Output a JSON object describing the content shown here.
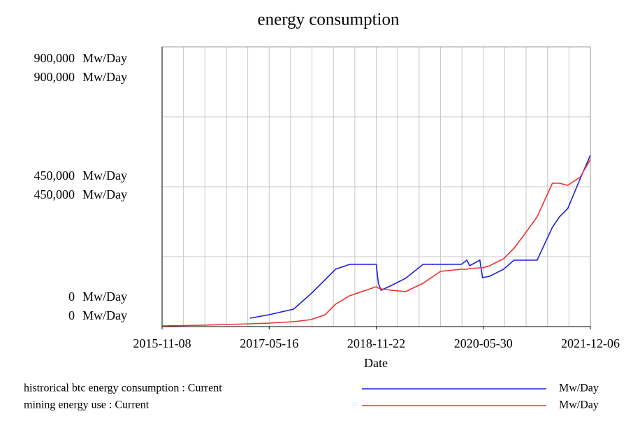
{
  "chart_data": {
    "type": "line",
    "title": "energy consumption",
    "x_label": "Date",
    "y_unit": "Mw/Day",
    "x": [
      "2015-11-08",
      "2016-06-05",
      "2017-02-06",
      "2017-05-16",
      "2017-09-20",
      "2017-12-19",
      "2018-03-02",
      "2018-04-25",
      "2018-07-07",
      "2018-11-22",
      "2018-12-03",
      "2018-12-17",
      "2019-02-10",
      "2019-04-23",
      "2019-07-23",
      "2019-10-21",
      "2020-02-06",
      "2020-03-06",
      "2020-03-20",
      "2020-05-12",
      "2020-05-26",
      "2020-07-02",
      "2020-09-12",
      "2020-11-05",
      "2020-12-30",
      "2021-03-05",
      "2021-05-23",
      "2021-06-29",
      "2021-08-11",
      "2021-10-15",
      "2021-12-06"
    ],
    "series": [
      {
        "name": "histrorical btc energy consumption : Current",
        "color": "#1f1fe0",
        "values": [
          null,
          null,
          27000,
          38250,
          56250,
          105750,
          150750,
          184500,
          200250,
          200250,
          139500,
          117000,
          132750,
          155250,
          200250,
          200250,
          200250,
          213750,
          195750,
          213750,
          157500,
          162000,
          184500,
          213750,
          213750,
          213750,
          319500,
          353250,
          380250,
          477000,
          551250
        ]
      },
      {
        "name": "mining energy use : Current",
        "color": "#f03030",
        "values": [
          2250,
          4500,
          9000,
          11250,
          15750,
          22500,
          38250,
          72000,
          99000,
          128250,
          123750,
          121500,
          117000,
          112500,
          139500,
          177750,
          184500,
          184500,
          186750,
          189000,
          189000,
          195750,
          218250,
          252000,
          297000,
          353250,
          461250,
          461250,
          454500,
          481500,
          537750
        ]
      }
    ],
    "xlim": [
      "2015-11-08",
      "2021-12-06"
    ],
    "xticks": [
      "2015-11-08",
      "2017-05-16",
      "2018-11-22",
      "2020-05-30",
      "2021-12-06"
    ],
    "x_grid_divisions": 20,
    "ylim": [
      0,
      900000
    ],
    "yticks": [
      {
        "value": 0,
        "label": "0"
      },
      {
        "value": 450000,
        "label": "450,000"
      },
      {
        "value": 900000,
        "label": "900,000"
      }
    ],
    "y_minor_grid": [
      225000,
      675000
    ],
    "grid": true
  }
}
